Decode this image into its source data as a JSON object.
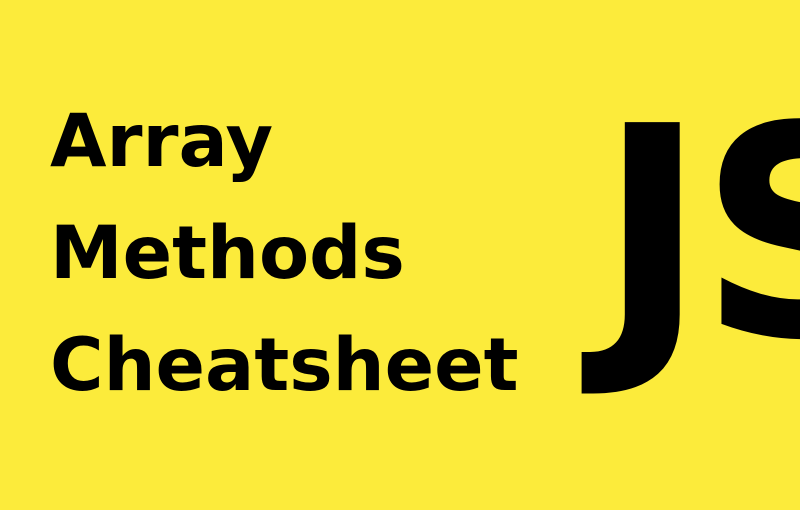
{
  "title_lines": [
    "Array",
    "Methods",
    "Cheatsheet"
  ],
  "logo_text": "JS",
  "colors": {
    "background": "#fceb3b",
    "text": "#000000"
  }
}
